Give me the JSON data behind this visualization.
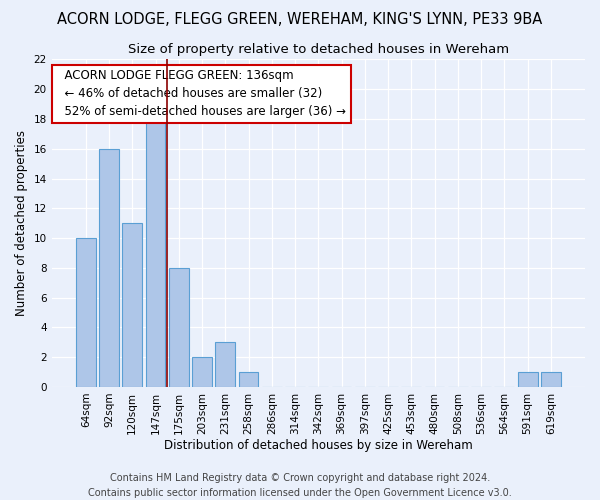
{
  "title": "ACORN LODGE, FLEGG GREEN, WEREHAM, KING'S LYNN, PE33 9BA",
  "subtitle": "Size of property relative to detached houses in Wereham",
  "xlabel": "Distribution of detached houses by size in Wereham",
  "ylabel": "Number of detached properties",
  "categories": [
    "64sqm",
    "92sqm",
    "120sqm",
    "147sqm",
    "175sqm",
    "203sqm",
    "231sqm",
    "258sqm",
    "286sqm",
    "314sqm",
    "342sqm",
    "369sqm",
    "397sqm",
    "425sqm",
    "453sqm",
    "480sqm",
    "508sqm",
    "536sqm",
    "564sqm",
    "591sqm",
    "619sqm"
  ],
  "values": [
    10,
    16,
    11,
    18,
    8,
    2,
    3,
    1,
    0,
    0,
    0,
    0,
    0,
    0,
    0,
    0,
    0,
    0,
    0,
    1,
    1
  ],
  "bar_color": "#aec6e8",
  "bar_edge_color": "#5a9fd4",
  "vline_x": 3.5,
  "vline_color": "#8b0000",
  "annotation_text": "  ACORN LODGE FLEGG GREEN: 136sqm\n  ← 46% of detached houses are smaller (32)\n  52% of semi-detached houses are larger (36) →",
  "annotation_box_color": "#ffffff",
  "annotation_box_edge": "#cc0000",
  "ylim": [
    0,
    22
  ],
  "yticks": [
    0,
    2,
    4,
    6,
    8,
    10,
    12,
    14,
    16,
    18,
    20,
    22
  ],
  "footer_line1": "Contains HM Land Registry data © Crown copyright and database right 2024.",
  "footer_line2": "Contains public sector information licensed under the Open Government Licence v3.0.",
  "bg_color": "#eaf0fb",
  "title_fontsize": 10.5,
  "subtitle_fontsize": 9.5,
  "label_fontsize": 8.5,
  "tick_fontsize": 7.5,
  "annotation_fontsize": 8.5,
  "footer_fontsize": 7.0
}
